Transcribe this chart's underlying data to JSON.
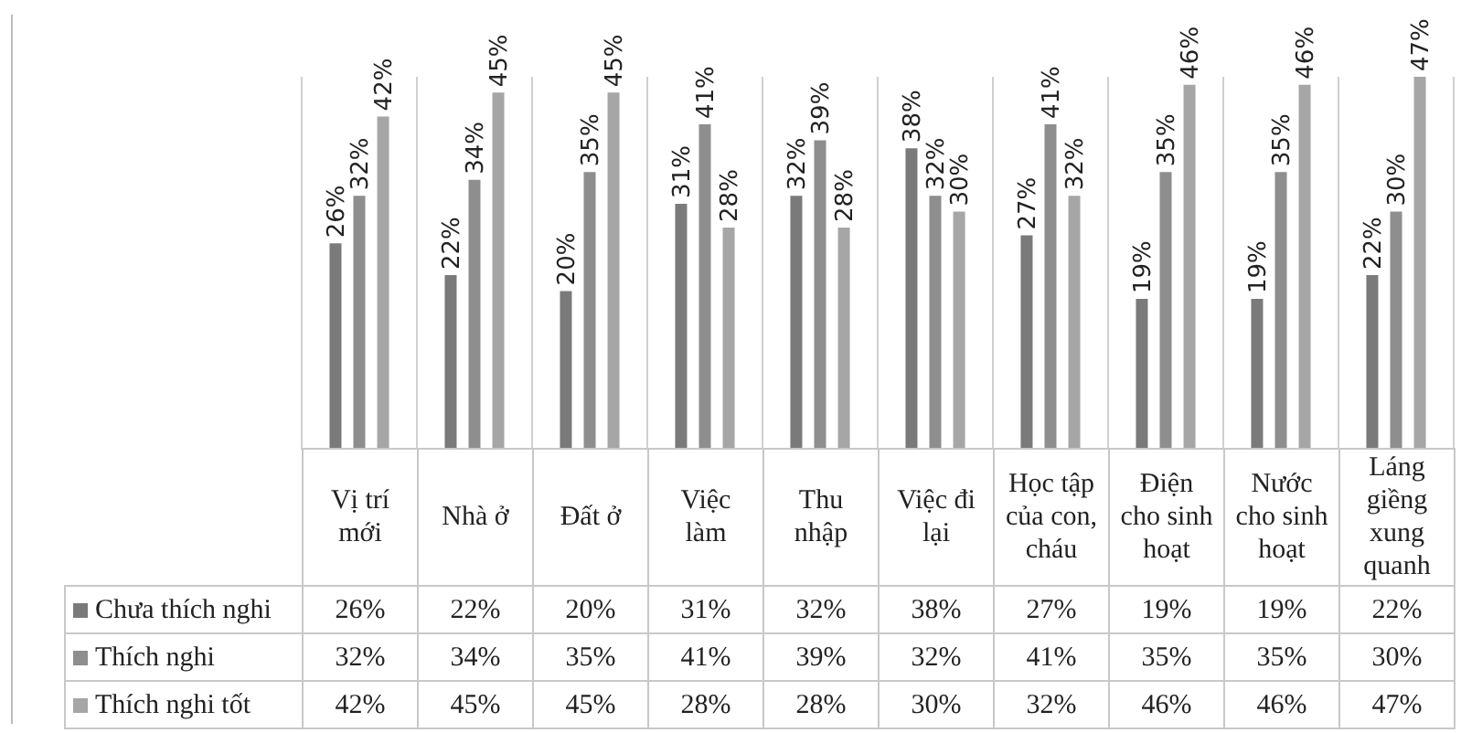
{
  "chart_data": {
    "type": "bar",
    "categories": [
      "Vị trí mới",
      "Nhà ở",
      "Đất ở",
      "Việc làm",
      "Thu nhập",
      "Việc đi lại",
      "Học tập của con, cháu",
      "Điện cho sinh hoạt",
      "Nước cho sinh hoạt",
      "Láng giềng xung quanh"
    ],
    "series": [
      {
        "name": "Chưa thích nghi",
        "color": "#7a7a7a",
        "values": [
          26,
          22,
          20,
          31,
          32,
          38,
          27,
          19,
          19,
          22
        ],
        "value_labels": [
          "26%",
          "22%",
          "20%",
          "31%",
          "32%",
          "38%",
          "27%",
          "19%",
          "19%",
          "22%"
        ]
      },
      {
        "name": "Thích nghi",
        "color": "#8e8e8e",
        "values": [
          32,
          34,
          35,
          41,
          39,
          32,
          41,
          35,
          35,
          30
        ],
        "value_labels": [
          "32%",
          "34%",
          "35%",
          "41%",
          "39%",
          "32%",
          "41%",
          "35%",
          "35%",
          "30%"
        ]
      },
      {
        "name": "Thích nghi tốt",
        "color": "#a6a6a6",
        "values": [
          42,
          45,
          45,
          28,
          28,
          30,
          32,
          46,
          46,
          47
        ],
        "value_labels": [
          "42%",
          "45%",
          "45%",
          "28%",
          "28%",
          "30%",
          "32%",
          "46%",
          "46%",
          "47%"
        ]
      }
    ],
    "grid": "x",
    "legend": "bottom"
  }
}
